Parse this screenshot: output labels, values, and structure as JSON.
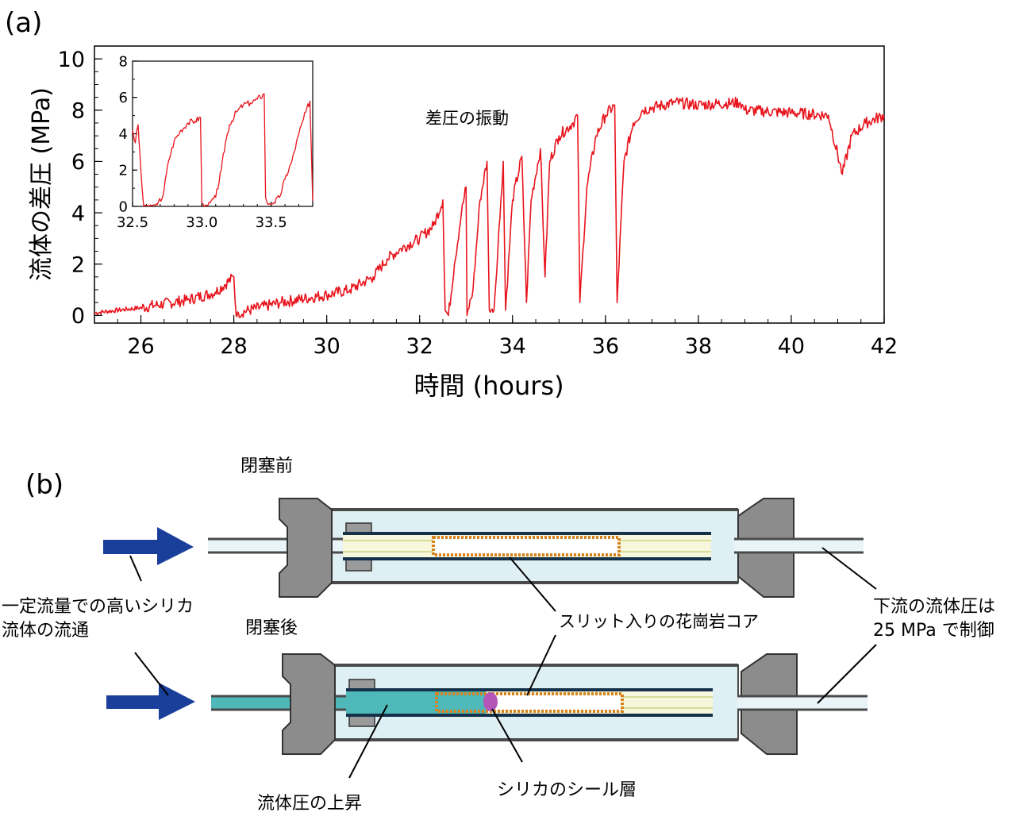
{
  "panel_a": {
    "label": "(a)",
    "annotation": "差圧の振動"
  },
  "panel_b": {
    "label": "(b)",
    "before_label": "閉塞前",
    "after_label": "閉塞後",
    "inflow_label_line1": "一定流量での高いシリカ",
    "inflow_label_line2": "流体の流通",
    "core_label": "スリット入りの花崗岩コア",
    "downstream_line1": "下流の流体圧は",
    "downstream_line2": "25 MPa で制御",
    "pressure_rise_label": "流体圧の上昇",
    "seal_label": "シリカのシール層"
  },
  "colors": {
    "trace": "#e8141c",
    "arrow": "#1a3f9a",
    "vessel_fill": "#dff0f5",
    "cap_gray": "#8c8c8c",
    "core_border": "#d8821e",
    "fluid_teal": "#4fb8b8",
    "seal_purple": "#b455b8"
  },
  "chart_data": [
    {
      "type": "line",
      "xlabel": "時間 (hours)",
      "ylabel": "流体の差圧 (MPa)",
      "xlim": [
        25,
        42
      ],
      "ylim": [
        -0.3,
        10.5
      ],
      "xticks": [
        "26",
        "28",
        "30",
        "32",
        "34",
        "36",
        "38",
        "40",
        "42"
      ],
      "yticks": [
        "0",
        "2",
        "4",
        "6",
        "8",
        "10"
      ],
      "series": [
        {
          "x": [
            25.0,
            26.0,
            27.0,
            27.6,
            28.0,
            28.05,
            28.1,
            29.0,
            30.0,
            30.5,
            31.0,
            31.3,
            31.6,
            32.0,
            32.3,
            32.5,
            32.55,
            32.62,
            32.75,
            32.9,
            33.0,
            33.02,
            33.15,
            33.3,
            33.45,
            33.5,
            33.6,
            33.75,
            33.8,
            33.85,
            34.0,
            34.2,
            34.3,
            34.4,
            34.6,
            34.7,
            34.8,
            35.0,
            35.3,
            35.4,
            35.45,
            35.6,
            35.8,
            36.0,
            36.2,
            36.25,
            36.4,
            36.6,
            36.8,
            37.0,
            37.5,
            38.0,
            38.9,
            39.0,
            40.0,
            40.8,
            41.1,
            41.3,
            41.6,
            42.0
          ],
          "y": [
            0.1,
            0.3,
            0.6,
            0.9,
            1.5,
            0.0,
            0.1,
            0.5,
            0.8,
            1.0,
            1.5,
            2.2,
            2.6,
            3.0,
            3.5,
            4.5,
            0.2,
            0.0,
            2.0,
            4.0,
            5.0,
            0.0,
            1.0,
            4.5,
            6.0,
            0.2,
            0.2,
            4.5,
            6.0,
            0.2,
            4.5,
            6.2,
            0.5,
            4.5,
            6.5,
            1.5,
            6.0,
            7.0,
            7.5,
            7.8,
            0.5,
            5.0,
            7.0,
            7.8,
            8.2,
            0.5,
            6.0,
            7.5,
            8.0,
            8.1,
            8.3,
            8.2,
            8.3,
            8.0,
            7.9,
            7.8,
            5.5,
            7.0,
            7.5,
            7.8
          ]
        }
      ]
    },
    {
      "type": "line",
      "xlim": [
        32.5,
        33.8
      ],
      "ylim": [
        0,
        8
      ],
      "xticks": [
        "32.5",
        "33.0",
        "33.5"
      ],
      "yticks": [
        "0",
        "2",
        "4",
        "6",
        "8"
      ],
      "series": [
        {
          "x": [
            32.5,
            32.52,
            32.54,
            32.56,
            32.58,
            32.62,
            32.68,
            32.72,
            32.76,
            32.8,
            32.85,
            32.9,
            32.95,
            32.99,
            33.0,
            33.02,
            33.06,
            33.1,
            33.14,
            33.17,
            33.2,
            33.25,
            33.3,
            33.35,
            33.4,
            33.45,
            33.46,
            33.48,
            33.52,
            33.56,
            33.6,
            33.65,
            33.7,
            33.75,
            33.78,
            33.8
          ],
          "y": [
            4.2,
            3.5,
            4.5,
            2.0,
            0.0,
            0.0,
            0.1,
            0.6,
            2.5,
            3.6,
            4.2,
            4.6,
            4.7,
            4.9,
            0.2,
            0.0,
            0.2,
            0.5,
            2.0,
            3.5,
            4.5,
            5.2,
            5.6,
            5.7,
            5.9,
            6.2,
            0.5,
            0.1,
            0.2,
            0.5,
            1.5,
            2.5,
            4.0,
            5.2,
            5.8,
            0.3
          ]
        }
      ]
    }
  ]
}
